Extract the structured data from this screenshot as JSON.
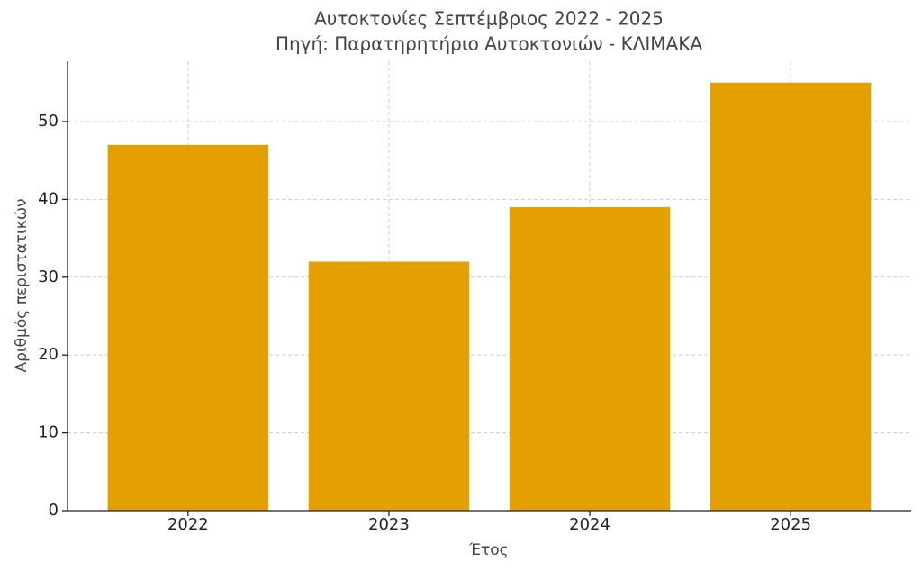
{
  "chart_data": {
    "type": "bar",
    "title": "Αυτοκτονίες Σεπτέμβριος 2022 - 2025",
    "subtitle": "Πηγή: Παρατηρητήριο Αυτοκτονιών - ΚΛΙΜΑΚΑ",
    "x_label": "Έτος",
    "y_label": "Αριθμός περιστατικών",
    "categories": [
      "2022",
      "2023",
      "2024",
      "2025"
    ],
    "values": [
      47,
      32,
      39,
      55
    ],
    "color": "#e3a000",
    "ylim": [
      0,
      57.75
    ],
    "yticks": [
      0,
      10,
      20,
      30,
      40,
      50
    ],
    "grid": true
  }
}
